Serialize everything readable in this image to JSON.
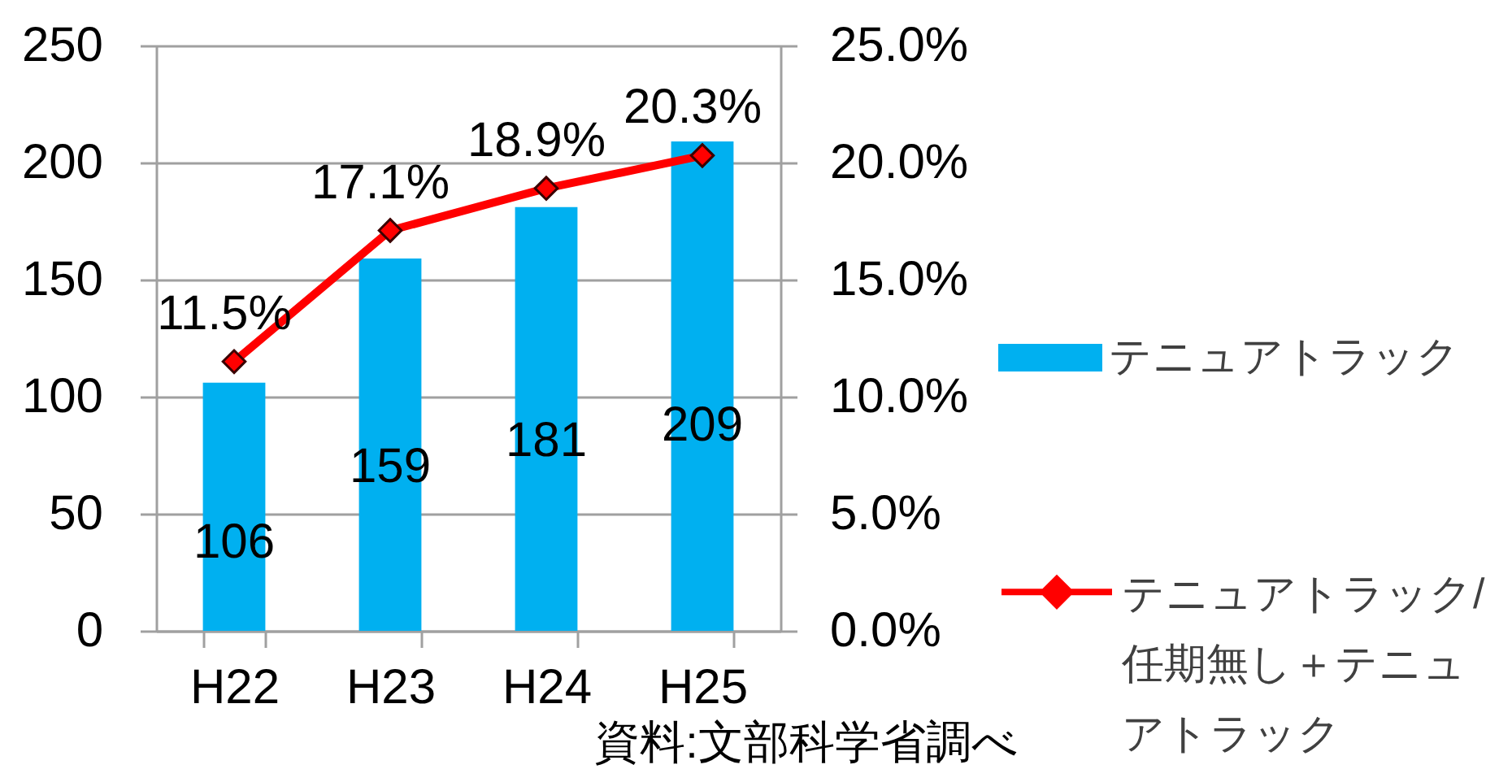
{
  "chart_data": {
    "type": "bar",
    "categories": [
      "H22",
      "H23",
      "H24",
      "H25"
    ],
    "series": [
      {
        "name": "テニュアトラック",
        "color": "#00b0f0",
        "values": [
          106,
          159,
          181,
          209
        ],
        "value_labels": [
          "106",
          "159",
          "181",
          "209"
        ]
      },
      {
        "name": "テニュアトラック/任期無し＋テニュアトラック",
        "type": "line",
        "axis": "y2",
        "color": "#ff0000",
        "values": [
          11.5,
          17.1,
          18.9,
          20.3
        ],
        "value_labels": [
          "11.5%",
          "17.1%",
          "18.9%",
          "20.3%"
        ],
        "marker": "diamond",
        "line_style": "solid"
      }
    ],
    "ylim": [
      0,
      250
    ],
    "yticks": [
      0,
      50,
      100,
      150,
      200,
      250
    ],
    "y2lim": [
      0,
      25
    ],
    "y2ticks": [
      {
        "value": 0,
        "label": "0.0%"
      },
      {
        "value": 5,
        "label": "5.0%"
      },
      {
        "value": 10,
        "label": "10.0%"
      },
      {
        "value": 15,
        "label": "15.0%"
      },
      {
        "value": 20,
        "label": "20.0%"
      },
      {
        "value": 25,
        "label": "25.0%"
      }
    ],
    "grid": "y",
    "legend": "right",
    "annotations": [
      "資料:文部科学省調べ"
    ]
  }
}
